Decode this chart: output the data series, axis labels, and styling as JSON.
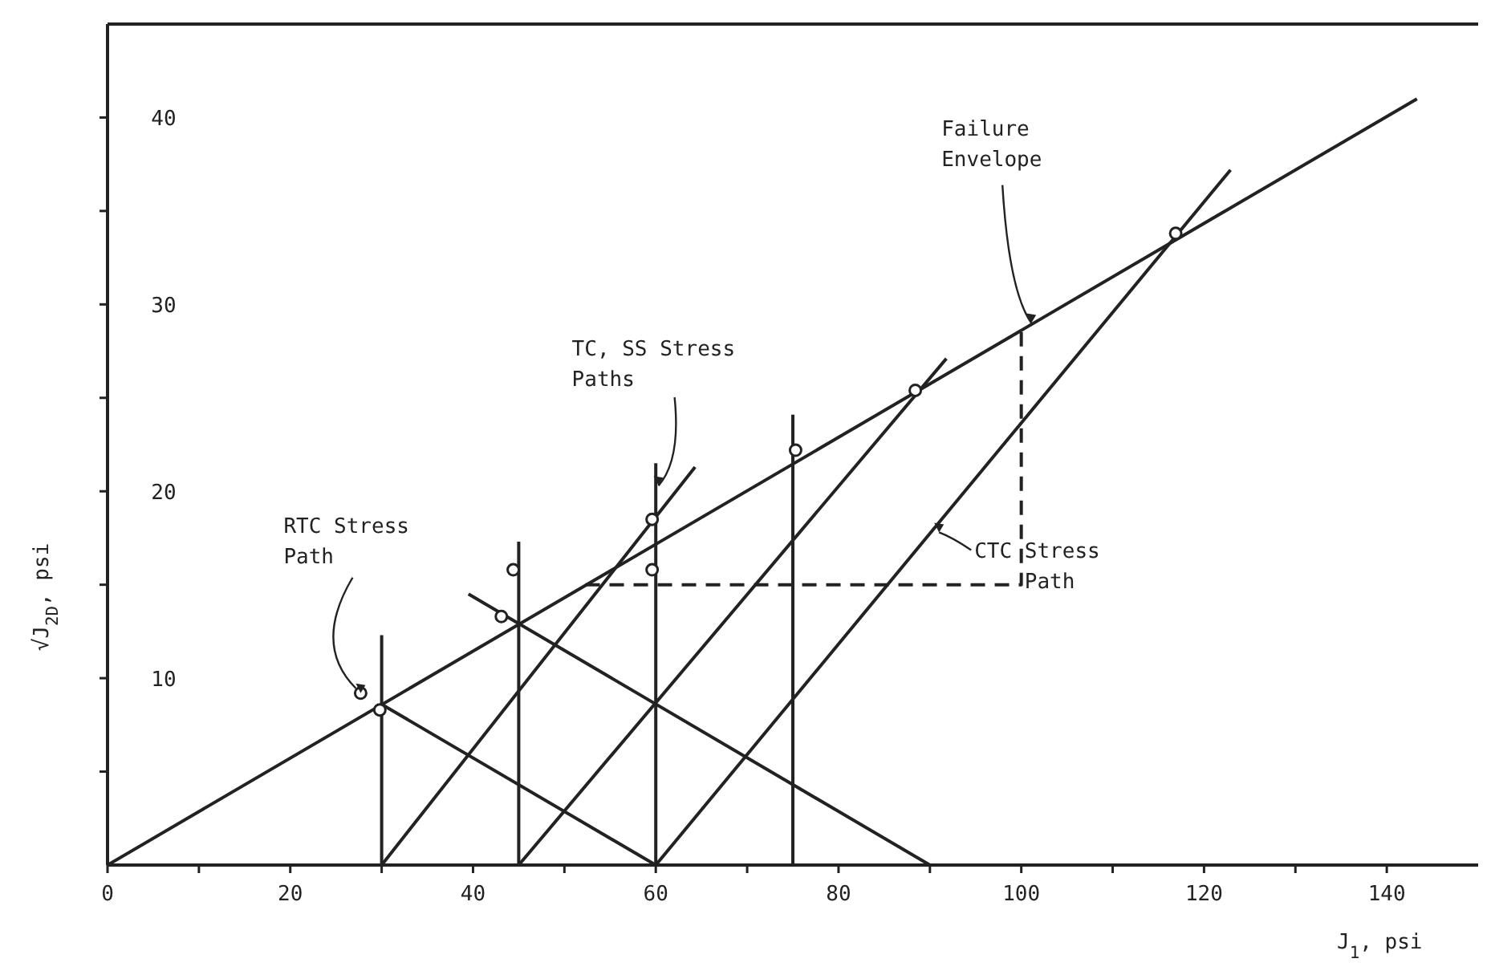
{
  "chart_data": {
    "type": "line",
    "xlabel": "J$_{1}$, psi",
    "ylabel": "√J$_{2D}$, psi",
    "xlim": [
      0,
      150
    ],
    "ylim": [
      0,
      45
    ],
    "xticks": [
      0,
      {
        "value": 10,
        "label": null
      },
      20,
      {
        "value": 30,
        "label": null
      },
      40,
      {
        "value": 50,
        "label": null
      },
      60,
      {
        "value": 70,
        "label": null
      },
      80,
      {
        "value": 90,
        "label": null
      },
      100,
      {
        "value": 110,
        "label": null
      },
      120,
      {
        "value": 130,
        "label": null
      },
      140
    ],
    "yticks": [
      {
        "value": 5,
        "label": null
      },
      10,
      {
        "value": 15,
        "label": null
      },
      20,
      {
        "value": 25,
        "label": null
      },
      30,
      {
        "value": 35,
        "label": null
      },
      40
    ],
    "grid": false,
    "marker": "none",
    "line_style": "solid",
    "series": [
      {
        "color": "#222222",
        "x": [
          0,
          143.3
        ],
        "values": [
          0,
          41
        ]
      },
      {
        "color": "#222222",
        "x": [
          30,
          60
        ],
        "values": [
          8.6,
          0
        ]
      },
      {
        "color": "#222222",
        "x": [
          39.5,
          90
        ],
        "values": [
          14.5,
          0
        ]
      },
      {
        "color": "#222222",
        "x": [
          30,
          30
        ],
        "values": [
          0,
          12.3
        ]
      },
      {
        "color": "#222222",
        "x": [
          45,
          45
        ],
        "values": [
          0,
          17.3
        ]
      },
      {
        "color": "#222222",
        "x": [
          60,
          60
        ],
        "values": [
          0,
          21.5
        ]
      },
      {
        "color": "#222222",
        "x": [
          75,
          75
        ],
        "values": [
          0,
          24.1
        ]
      },
      {
        "color": "#222222",
        "x": [
          30,
          64.3
        ],
        "values": [
          0,
          21.3
        ]
      },
      {
        "color": "#222222",
        "x": [
          45,
          91.8
        ],
        "values": [
          0,
          27.1
        ]
      },
      {
        "color": "#222222",
        "x": [
          60,
          122.9
        ],
        "values": [
          0,
          37.2
        ]
      },
      {
        "color": "#222222",
        "x": [
          52.3,
          100,
          100
        ],
        "values": [
          15,
          15,
          28.7
        ],
        "line_style": "dashed"
      },
      {
        "type": "scatter",
        "color": "#222222",
        "marker": "circle",
        "x": [
          27.7,
          29.8,
          43.1,
          44.4,
          59.6,
          59.6,
          75.3,
          88.4,
          116.9
        ],
        "values": [
          9.2,
          8.3,
          13.3,
          15.8,
          18.5,
          15.8,
          22.2,
          25.4,
          33.8
        ]
      }
    ],
    "annotations": [
      {
        "text": "Failure\nEnvelope",
        "x": 101.1,
        "y": 29
      },
      {
        "text": "TC, SS Stress\nPaths",
        "x": 60.3,
        "y": 20.3
      },
      {
        "text": "RTC Stress\nPath",
        "x": 27.7,
        "y": 9.2
      },
      {
        "text": "CTC Stress\nPath",
        "x": 91,
        "y": 17.8
      }
    ]
  }
}
